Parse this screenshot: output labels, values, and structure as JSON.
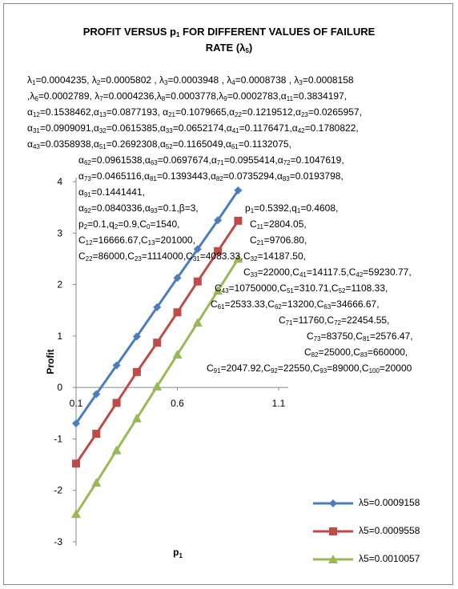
{
  "chart_data": {
    "type": "line",
    "title_parts": [
      "PROFIT VERSUS p",
      "1",
      " FOR DIFFERENT VALUES OF FAILURE"
    ],
    "title_line2": "RATE (λ",
    "title_line2_sub": "5",
    "title_line2_end": ")",
    "xlabel_base": "p",
    "xlabel_sub": "1",
    "ylabel": "Profit",
    "xlim": [
      0.1,
      1.1
    ],
    "ylim": [
      -3,
      4
    ],
    "xticks": [
      "0.1",
      "0.6",
      "1.1"
    ],
    "yticks": [
      "4",
      "3",
      "2",
      "1",
      "0",
      "-1",
      "-2",
      "-3"
    ],
    "x": [
      0.1,
      0.2,
      0.3,
      0.4,
      0.5,
      0.6,
      0.7,
      0.8,
      0.9
    ],
    "series": [
      {
        "name": "λ5=0.0009158",
        "color": "#4a7ebb",
        "marker": "diamond",
        "values": [
          -0.7,
          -0.13,
          0.43,
          0.99,
          1.56,
          2.13,
          2.69,
          3.25,
          3.83
        ]
      },
      {
        "name": "λ5=0.0009558",
        "color": "#be4b48",
        "marker": "square",
        "values": [
          -1.48,
          -0.9,
          -0.3,
          0.3,
          0.87,
          1.46,
          2.06,
          2.65,
          3.24
        ]
      },
      {
        "name": "λ5=0.0010057",
        "color": "#98b954",
        "marker": "triangle",
        "values": [
          -2.46,
          -1.85,
          -1.22,
          -0.6,
          0.02,
          0.64,
          1.26,
          1.88,
          2.5
        ]
      }
    ],
    "legend_position": "bottom-right",
    "grid": false,
    "annotation_lines": [
      "λ<sub>1</sub>=0.0004235,  λ<sub>2</sub>=0.0005802 , λ<sub>3</sub>=0.0003948 , λ<sub>4</sub>=0.0008738 , λ<sub>3</sub>=0.0008158",
      ",λ<sub>6</sub>=0.0002789, λ<sub>7</sub>=0.0004236,λ<sub>8</sub>=0.0003778,λ<sub>9</sub>=0.0002783,α<sub>11</sub>=0.3834197,",
      "α<sub>12</sub>=0.1538462,α<sub>13</sub>=0.0877193, α<sub>21</sub>=0.1079665,α<sub>22</sub>=0.1219512,α<sub>23</sub>=0.0265957,",
      "α<sub>31</sub>=0.0909091,α<sub>32</sub>=0.0615385,α<sub>33</sub>=0.0652174,α<sub>41</sub>=0.1176471,α<sub>42</sub>=0.1780822,",
      "α<sub>43</sub>=0.0358938,α<sub>51</sub>=0.2692308,α<sub>52</sub>=0.1165049,α<sub>61</sub>=0.1132075,",
      "α<sub>62</sub>=0.0961538,α<sub>63</sub>=0.0697674,α<sub>71</sub>=0.0955414,α<sub>72</sub>=0.1047619,",
      "α<sub>73</sub>=0.0465116,α<sub>81</sub>=0.1393443,α<sub>82</sub>=0.0735294,α<sub>83</sub>=0.0193798,",
      "α<sub>91</sub>=0.1441441,",
      "α<sub>92</sub>=0.0840336,α<sub>93</sub>=0.1,β=3,",
      "p<sub>1</sub>=0.5392,q<sub>1</sub>=0.4608,",
      "p<sub>2</sub>=0.1,q<sub>2</sub>=0.9,C<sub>0</sub>=1540,",
      "C<sub>11</sub>=2804.05,",
      "C<sub>12</sub>=16666.67,C<sub>13</sub>=201000,",
      "C<sub>21</sub>=9706.80,",
      "C<sub>22</sub>=86000,C<sub>23</sub>=1114000,C<sub>31</sub>=4083.33,",
      "C<sub>32</sub>=14187.50,",
      "C<sub>33</sub>=22000,C<sub>41</sub>=14117.5,C<sub>42</sub>=59230.77,",
      "C<sub>43</sub>=10750000,C<sub>51</sub>=310.71,C<sub>52</sub>=1108.33,",
      "C<sub>61</sub>=2533.33,C<sub>62</sub>=13200,C<sub>63</sub>=34666.67,",
      "C<sub>71</sub>=11760,C<sub>72</sub>=22454.55,",
      "C<sub>73</sub>=83750,C<sub>81</sub>=2576.47,",
      "C<sub>82</sub>=25000,C<sub>83</sub>=660000,",
      "C<sub>91</sub>=2047.92,C<sub>92</sub>=22550,C<sub>93</sub>=89000,C<sub>100</sub>=20000"
    ]
  }
}
